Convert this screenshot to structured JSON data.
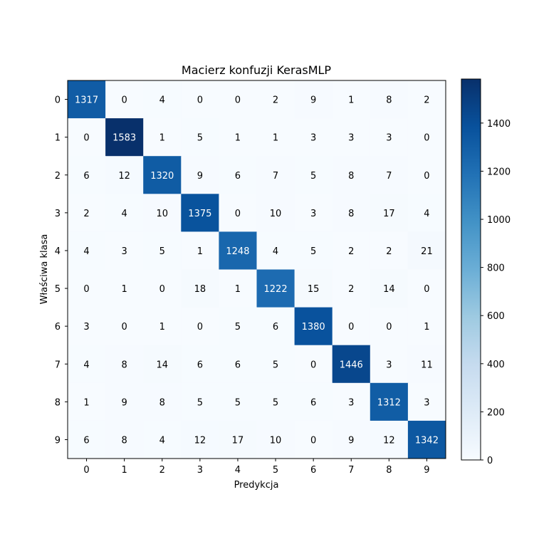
{
  "chart_data": {
    "type": "heatmap",
    "title": "Macierz konfuzji KerasMLP",
    "xlabel": "Predykcja",
    "ylabel": "Właściwa klasa",
    "x_categories": [
      "0",
      "1",
      "2",
      "3",
      "4",
      "5",
      "6",
      "7",
      "8",
      "9"
    ],
    "y_categories": [
      "0",
      "1",
      "2",
      "3",
      "4",
      "5",
      "6",
      "7",
      "8",
      "9"
    ],
    "values": [
      [
        1317,
        0,
        4,
        0,
        0,
        2,
        9,
        1,
        8,
        2
      ],
      [
        0,
        1583,
        1,
        5,
        1,
        1,
        3,
        3,
        3,
        0
      ],
      [
        6,
        12,
        1320,
        9,
        6,
        7,
        5,
        8,
        7,
        0
      ],
      [
        2,
        4,
        10,
        1375,
        0,
        10,
        3,
        8,
        17,
        4
      ],
      [
        4,
        3,
        5,
        1,
        1248,
        4,
        5,
        2,
        2,
        21
      ],
      [
        0,
        1,
        0,
        18,
        1,
        1222,
        15,
        2,
        14,
        0
      ],
      [
        3,
        0,
        1,
        0,
        5,
        6,
        1380,
        0,
        0,
        1
      ],
      [
        4,
        8,
        14,
        6,
        6,
        5,
        0,
        1446,
        3,
        11
      ],
      [
        1,
        9,
        8,
        5,
        5,
        5,
        6,
        3,
        1312,
        3
      ],
      [
        6,
        8,
        4,
        12,
        17,
        10,
        0,
        9,
        12,
        1342
      ]
    ],
    "colormap": "Blues",
    "colormap_stops": [
      "#f7fbff",
      "#deebf7",
      "#c6dbef",
      "#9ecae1",
      "#6baed6",
      "#4292c6",
      "#2171b5",
      "#08519c",
      "#08306b"
    ],
    "colorbar_range": [
      0,
      1583
    ],
    "colorbar_ticks": [
      "0",
      "200",
      "400",
      "600",
      "800",
      "1000",
      "1200",
      "1400"
    ],
    "text_color_light": "#ffffff",
    "text_color_dark": "#000000"
  }
}
